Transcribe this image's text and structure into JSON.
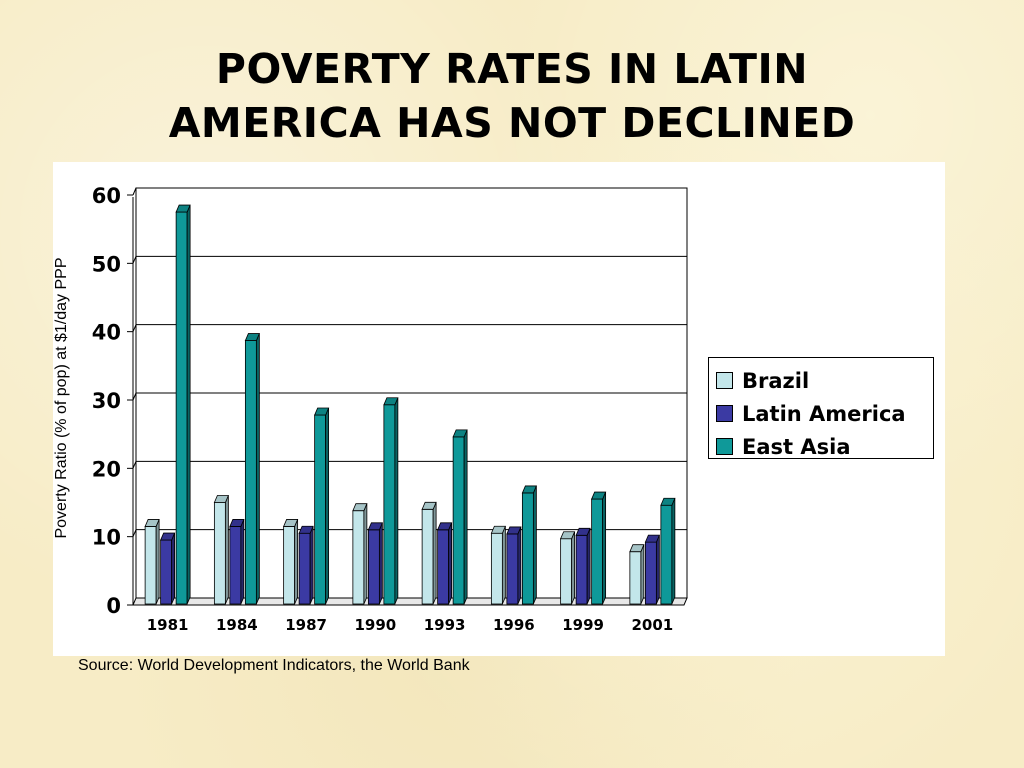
{
  "slide": {
    "title_line1": "POVERTY RATES IN LATIN",
    "title_line2": "AMERICA HAS NOT DECLINED",
    "source": "Source: World Development Indicators, the World Bank"
  },
  "chart_data": {
    "type": "bar",
    "style": "3d-clustered",
    "categories": [
      "1981",
      "1984",
      "1987",
      "1990",
      "1993",
      "1996",
      "1999",
      "2001"
    ],
    "series": [
      {
        "name": "Brazil",
        "color": "#c3e6ea",
        "values": [
          11.5,
          15.0,
          11.5,
          13.8,
          14.0,
          10.5,
          9.7,
          7.8
        ]
      },
      {
        "name": "Latin America",
        "color": "#3b3aa3",
        "values": [
          9.5,
          11.5,
          10.5,
          11.0,
          11.0,
          10.4,
          10.2,
          9.2
        ]
      },
      {
        "name": "East Asia",
        "color": "#0f9999",
        "values": [
          57.5,
          38.7,
          27.8,
          29.3,
          24.6,
          16.4,
          15.5,
          14.6
        ]
      }
    ],
    "ylabel": "Poverty Ratio (% of pop) at $1/day PPP",
    "xlabel": "",
    "ylim": [
      0,
      60
    ],
    "yticks": [
      "0",
      "10",
      "20",
      "30",
      "40",
      "50",
      "60"
    ],
    "grid": true,
    "legend_position": "right"
  }
}
